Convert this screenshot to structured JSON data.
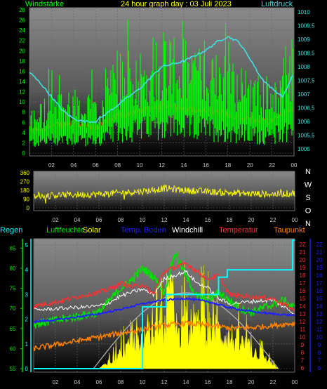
{
  "header": {
    "title": "24 hour graph day : 03 Juli 2023",
    "left_label": "Windstärke",
    "right_label": "Luftdruck"
  },
  "direction_labels": [
    "N",
    "W",
    "S",
    "O",
    "N"
  ],
  "lower_legend": [
    "Regen",
    "Luftfeuchte",
    "Solar",
    "Temp. Boden",
    "Windchill",
    "Temperatur",
    "Taupunkt"
  ],
  "colors": {
    "wind": "#00ff00",
    "pressure": "#40e0e0",
    "gust": "#ff2020",
    "direction": "#ffff00",
    "rain": "#00ffff",
    "humidity": "#00e000",
    "solar": "#ffff00",
    "soil": "#2020ff",
    "windchill": "#ffffff",
    "temperature": "#ff3030",
    "dewpoint": "#ff8000"
  },
  "chart_data": [
    {
      "type": "line",
      "x_ticks": [
        "02",
        "04",
        "06",
        "08",
        "10",
        "12",
        "14",
        "16",
        "18",
        "20",
        "22",
        "00"
      ],
      "y_left_ticks": [
        "0",
        "2",
        "4",
        "6",
        "8",
        "10",
        "12",
        "14",
        "16",
        "18",
        "20",
        "22",
        "24",
        "26",
        "28"
      ],
      "y_right_ticks": [
        "1005",
        "1005,5",
        "1006",
        "1006,5",
        "1007",
        "1007,5",
        "1008",
        "1008,5",
        "1009",
        "1009,5",
        "1010"
      ],
      "ylim_left": [
        0,
        28
      ],
      "ylim_right": [
        1005,
        1010
      ],
      "series": [
        {
          "name": "Windstärke",
          "axis": "left",
          "x": [
            0,
            2,
            4,
            6,
            8,
            10,
            12,
            14,
            16,
            18,
            20,
            22,
            24
          ],
          "y": [
            6,
            8,
            9,
            7,
            13,
            14,
            17,
            15,
            15,
            13,
            11,
            10,
            16
          ]
        },
        {
          "name": "Luftdruck",
          "axis": "right",
          "x": [
            0,
            1,
            2,
            3,
            4,
            5,
            6,
            7,
            8,
            9,
            10,
            11,
            12,
            13,
            14,
            15,
            16,
            17,
            18,
            19,
            20,
            21,
            22,
            23,
            24
          ],
          "y": [
            1007.8,
            1007.4,
            1006.9,
            1006.4,
            1006.1,
            1006.0,
            1006.0,
            1006.3,
            1006.6,
            1006.9,
            1007.2,
            1007.6,
            1008.0,
            1008.1,
            1008.2,
            1008.4,
            1008.6,
            1008.9,
            1009.1,
            1008.9,
            1008.3,
            1007.6,
            1007.2,
            1006.9,
            1007.8
          ]
        }
      ]
    },
    {
      "type": "line",
      "x_ticks": [
        "02",
        "04",
        "06",
        "08",
        "10",
        "12",
        "14",
        "16",
        "18",
        "20",
        "22",
        "00"
      ],
      "y_ticks": [
        "0",
        "90",
        "180",
        "270",
        "360"
      ],
      "ylim": [
        0,
        360
      ],
      "series": [
        {
          "name": "Windrichtung",
          "x": [
            0,
            2,
            4,
            6,
            8,
            10,
            12,
            14,
            16,
            18,
            20,
            22,
            24
          ],
          "y": [
            115,
            130,
            135,
            140,
            155,
            170,
            200,
            180,
            165,
            155,
            145,
            140,
            150
          ]
        }
      ]
    },
    {
      "type": "line",
      "x_ticks": [
        "02",
        "04",
        "06",
        "08",
        "10",
        "12",
        "14",
        "16",
        "18",
        "20",
        "22",
        "00"
      ],
      "y_left_ticks": [
        "55",
        "60",
        "65",
        "70",
        "75",
        "80",
        "85"
      ],
      "y_rain_ticks": [
        "0",
        "1",
        "2",
        "3",
        "4",
        "5"
      ],
      "y_right_ticks": [
        "6",
        "7",
        "8",
        "9",
        "10",
        "11",
        "12",
        "13",
        "14",
        "15",
        "16",
        "17",
        "18",
        "19",
        "20",
        "21",
        "22"
      ],
      "ylim_left": [
        55,
        87
      ],
      "ylim_rain": [
        0,
        5.2
      ],
      "ylim_right": [
        6,
        22
      ],
      "series": [
        {
          "name": "Regen",
          "axis": "rain",
          "x": [
            0,
            10,
            10,
            12.2,
            12.2,
            17,
            17,
            17.8,
            17.8,
            23.8,
            23.8,
            24
          ],
          "y": [
            0,
            0,
            2.5,
            2.5,
            3.0,
            3.0,
            3.7,
            3.7,
            4.0,
            4.0,
            5.2,
            5.2
          ]
        },
        {
          "name": "Luftfeuchte",
          "axis": "left",
          "x": [
            0,
            2,
            4,
            6,
            8,
            9,
            10,
            11,
            12,
            13,
            14,
            15,
            16,
            17,
            18,
            19,
            20,
            21,
            22,
            23,
            24
          ],
          "y": [
            66,
            67,
            68,
            69,
            75,
            77,
            80,
            78,
            74,
            84,
            78,
            73,
            72,
            74,
            72,
            70,
            69,
            70,
            71,
            72,
            70
          ]
        },
        {
          "name": "Temp. Boden",
          "axis": "right",
          "x": [
            0,
            2,
            4,
            6,
            8,
            10,
            12,
            14,
            16,
            18,
            20,
            22,
            24
          ],
          "y": [
            12,
            12.2,
            12.6,
            13,
            13.6,
            14.3,
            14.8,
            15,
            14.6,
            13.8,
            13.3,
            13,
            12.8
          ]
        },
        {
          "name": "Windchill",
          "axis": "right",
          "x": [
            0,
            6,
            7,
            8,
            9,
            10,
            11,
            12,
            13,
            14,
            15,
            16,
            17,
            18,
            20,
            22,
            24
          ],
          "y": [
            13.5,
            14,
            14.5,
            15.3,
            15.8,
            16.2,
            15.5,
            17.5,
            18,
            18.5,
            17,
            16.4,
            15,
            14.3,
            14.6,
            14.8,
            13
          ]
        },
        {
          "name": "Temperatur",
          "axis": "right",
          "x": [
            0,
            2,
            4,
            6,
            7,
            8,
            9,
            10,
            11,
            12,
            13,
            14,
            15,
            16,
            17,
            18,
            20,
            22,
            24
          ],
          "y": [
            14,
            14.5,
            15.2,
            15.8,
            16.2,
            17,
            16.5,
            16.8,
            15.5,
            18.5,
            19,
            19.5,
            18.5,
            17.5,
            18,
            15.5,
            15.2,
            15,
            13.5
          ]
        },
        {
          "name": "Taupunkt",
          "axis": "right",
          "x": [
            0,
            2,
            4,
            6,
            8,
            10,
            12,
            14,
            16,
            18,
            20,
            22,
            24
          ],
          "y": [
            8.5,
            9,
            9.5,
            10,
            10.5,
            11,
            11.5,
            11.8,
            11.5,
            11.2,
            11.2,
            11.5,
            11.8
          ]
        }
      ]
    }
  ]
}
